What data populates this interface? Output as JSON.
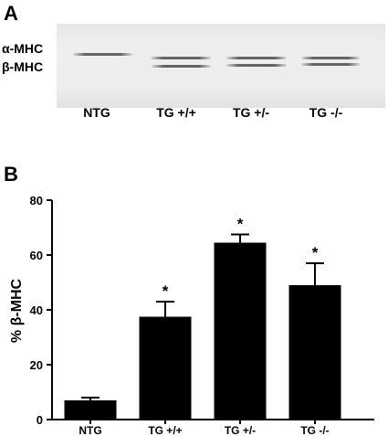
{
  "panel_a": {
    "letter": "A",
    "row_labels": [
      "α-MHC",
      "β-MHC"
    ],
    "lanes": [
      "NTG",
      "TG +/+",
      "TG +/-",
      "TG -/-"
    ]
  },
  "panel_b": {
    "letter": "B"
  },
  "chart_data": {
    "type": "bar",
    "title": "",
    "xlabel": "",
    "ylabel": "% β-MHC",
    "categories": [
      "NTG",
      "TG +/+",
      "TG +/-",
      "TG -/-"
    ],
    "values": [
      7,
      37.5,
      64.5,
      49
    ],
    "errors": [
      1,
      5.5,
      3,
      8
    ],
    "significance": [
      "",
      "*",
      "*",
      "*"
    ],
    "ylim": [
      0,
      80
    ],
    "yticks": [
      0,
      20,
      40,
      60,
      80
    ],
    "bar_color": "#000000",
    "grid": false
  }
}
